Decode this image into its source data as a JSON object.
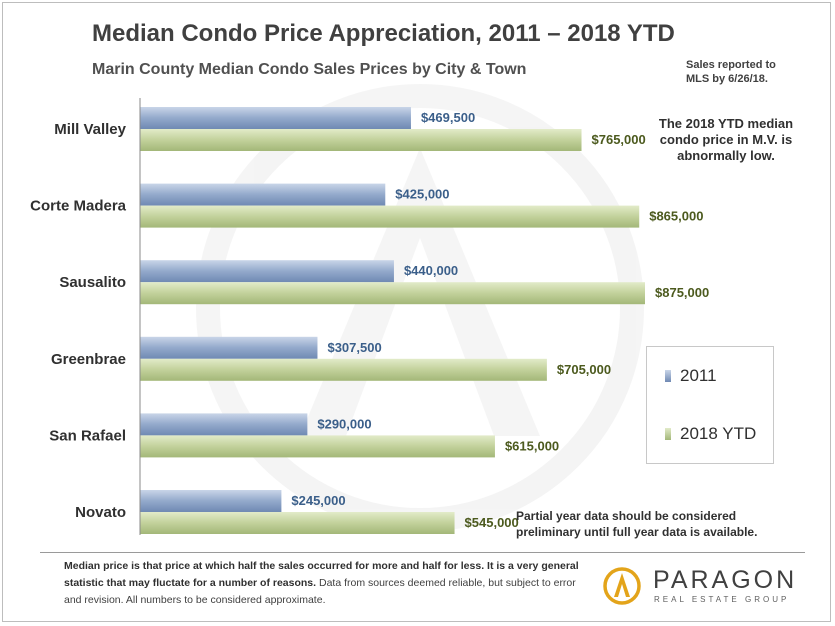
{
  "chart_data": {
    "type": "bar",
    "orientation": "horizontal",
    "title": "Median Condo Price Appreciation, 2011 – 2018 YTD",
    "subtitle": "Marin County Median Condo Sales Prices by City & Town",
    "categories": [
      "Mill Valley",
      "Corte Madera",
      "Sausalito",
      "Greenbrae",
      "San Rafael",
      "Novato"
    ],
    "series": [
      {
        "name": "2011",
        "color": "#8fa6c8",
        "values": [
          469500,
          425000,
          440000,
          307500,
          290000,
          245000
        ],
        "labels": [
          "$469,500",
          "$425,000",
          "$440,000",
          "$307,500",
          "$290,000",
          "$245,000"
        ]
      },
      {
        "name": "2018 YTD",
        "color": "#c2d19b",
        "values": [
          765000,
          865000,
          875000,
          705000,
          615000,
          545000
        ],
        "labels": [
          "$765,000",
          "$865,000",
          "$875,000",
          "$705,000",
          "$615,000",
          "$545,000"
        ]
      }
    ],
    "xlim": [
      0,
      900000
    ],
    "legend": "right",
    "grid": false
  },
  "notes": {
    "sales_reported": [
      "Sales reported to",
      "MLS by 6/26/18."
    ],
    "mill_valley": [
      "The 2018 YTD median",
      "condo price in M.V. is",
      "abnormally low."
    ],
    "preliminary": [
      "Partial year data should be considered",
      "preliminary until full year data is available."
    ]
  },
  "footer": {
    "bold": "Median price is that price at which half the sales occurred for more and half for less.  It is a very general statistic that may fluctate for a number of reasons.",
    "normal": " Data from sources deemed reliable, but subject to error and revision.  All numbers  to be considered approximate."
  },
  "logo": {
    "name": "PARAGON",
    "tagline": "REAL ESTATE GROUP",
    "colors": {
      "gold": "#e3a41a",
      "dark": "#555555"
    }
  }
}
